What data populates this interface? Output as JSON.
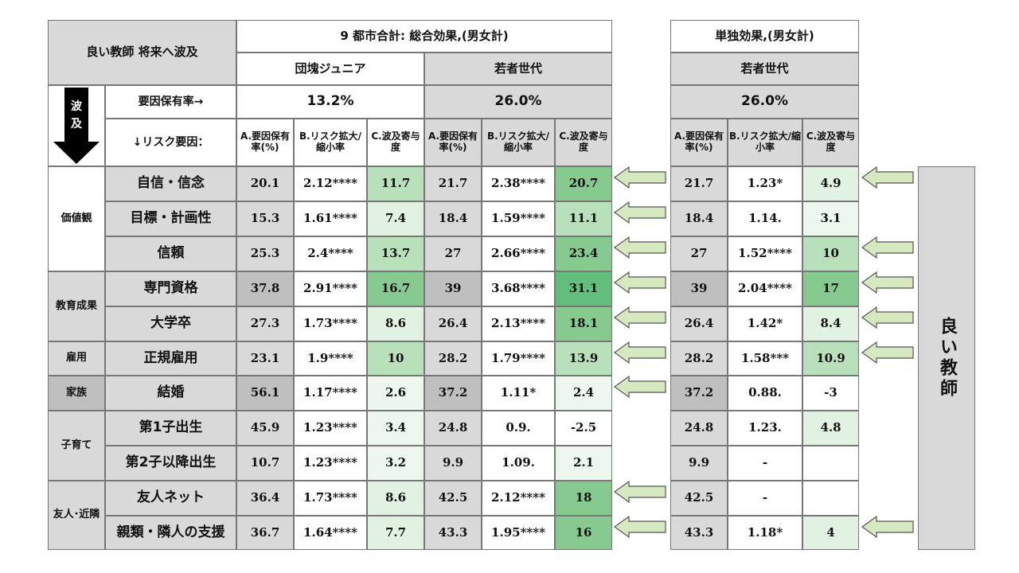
{
  "header": {
    "corner_title": "良い教師 将来へ波及",
    "group1_title": "9 都市合計: 総合効果,(男女計)",
    "group2_title": "単独効果,(男女計)",
    "gen_dankai": "団塊ジュニア",
    "gen_wakamono1": "若者世代",
    "gen_wakamono2": "若者世代",
    "hakyu_label": "波及",
    "factor_rate_label": "要因保有率→",
    "risk_label": "↓リスク要因：",
    "rate_dankai": "13.2%",
    "rate_wakamono1": "26.0%",
    "rate_wakamono2": "26.0%",
    "col_a": "A.要因保有率(%)",
    "col_b": "B.リスク拡大/縮小率",
    "col_c": "C.波及寄与度"
  },
  "sidebar_label": "良い教師",
  "colors": {
    "gray": "#d9d9d9",
    "dark_gray": "#bfbfbf",
    "green_light": "#e2f2e2",
    "green_mid": "#b7e0bb",
    "green_strong": "#86ca8f",
    "green_dark": "#63be7b",
    "arrow_fill": "#d5e8c0"
  },
  "categories": [
    {
      "label": "価値観"
    },
    {
      "label": "教育成果"
    },
    {
      "label": "雇用"
    },
    {
      "label": "家族"
    },
    {
      "label": "子育て"
    },
    {
      "label": "友人･近隣"
    }
  ],
  "rows": [
    {
      "label": "自信・信念",
      "d_a": "20.1",
      "d_b": "2.12****",
      "d_c": "11.7",
      "w_a": "21.7",
      "w_b": "2.38****",
      "w_c": "20.7",
      "s_a": "21.7",
      "s_b": "1.23*",
      "s_c": "4.9"
    },
    {
      "label": "目標・計画性",
      "d_a": "15.3",
      "d_b": "1.61****",
      "d_c": "7.4",
      "w_a": "18.4",
      "w_b": "1.59****",
      "w_c": "11.1",
      "s_a": "18.4",
      "s_b": "1.14.",
      "s_c": "3.1"
    },
    {
      "label": "信頼",
      "d_a": "25.3",
      "d_b": "2.4****",
      "d_c": "13.7",
      "w_a": "27",
      "w_b": "2.66****",
      "w_c": "23.4",
      "s_a": "27",
      "s_b": "1.52****",
      "s_c": "10"
    },
    {
      "label": "専門資格",
      "d_a": "37.8",
      "d_b": "2.91****",
      "d_c": "16.7",
      "w_a": "39",
      "w_b": "3.68****",
      "w_c": "31.1",
      "s_a": "39",
      "s_b": "2.04****",
      "s_c": "17"
    },
    {
      "label": "大学卒",
      "d_a": "27.3",
      "d_b": "1.73****",
      "d_c": "8.6",
      "w_a": "26.4",
      "w_b": "2.13****",
      "w_c": "18.1",
      "s_a": "26.4",
      "s_b": "1.42*",
      "s_c": "8.4"
    },
    {
      "label": "正規雇用",
      "d_a": "23.1",
      "d_b": "1.9****",
      "d_c": "10",
      "w_a": "28.2",
      "w_b": "1.79****",
      "w_c": "13.9",
      "s_a": "28.2",
      "s_b": "1.58***",
      "s_c": "10.9"
    },
    {
      "label": "結婚",
      "d_a": "56.1",
      "d_b": "1.17****",
      "d_c": "2.6",
      "w_a": "37.2",
      "w_b": "1.11*",
      "w_c": "2.4",
      "s_a": "37.2",
      "s_b": "0.88.",
      "s_c": "-3"
    },
    {
      "label": "第1子出生",
      "d_a": "45.9",
      "d_b": "1.23****",
      "d_c": "3.4",
      "w_a": "24.8",
      "w_b": "0.9.",
      "w_c": "-2.5",
      "s_a": "24.8",
      "s_b": "1.23.",
      "s_c": "4.8"
    },
    {
      "label": "第2子以降出生",
      "d_a": "10.7",
      "d_b": "1.23****",
      "d_c": "3.2",
      "w_a": "9.9",
      "w_b": "1.09.",
      "w_c": "2.1",
      "s_a": "9.9",
      "s_b": "-",
      "s_c": ""
    },
    {
      "label": "友人ネット",
      "d_a": "36.4",
      "d_b": "1.73****",
      "d_c": "8.6",
      "w_a": "42.5",
      "w_b": "2.12****",
      "w_c": "18",
      "s_a": "42.5",
      "s_b": "-",
      "s_c": ""
    },
    {
      "label": "親類・隣人の支援",
      "d_a": "36.7",
      "d_b": "1.64****",
      "d_c": "7.7",
      "w_a": "43.3",
      "w_b": "1.95****",
      "w_c": "16",
      "s_a": "43.3",
      "s_b": "1.18*",
      "s_c": "4"
    }
  ]
}
